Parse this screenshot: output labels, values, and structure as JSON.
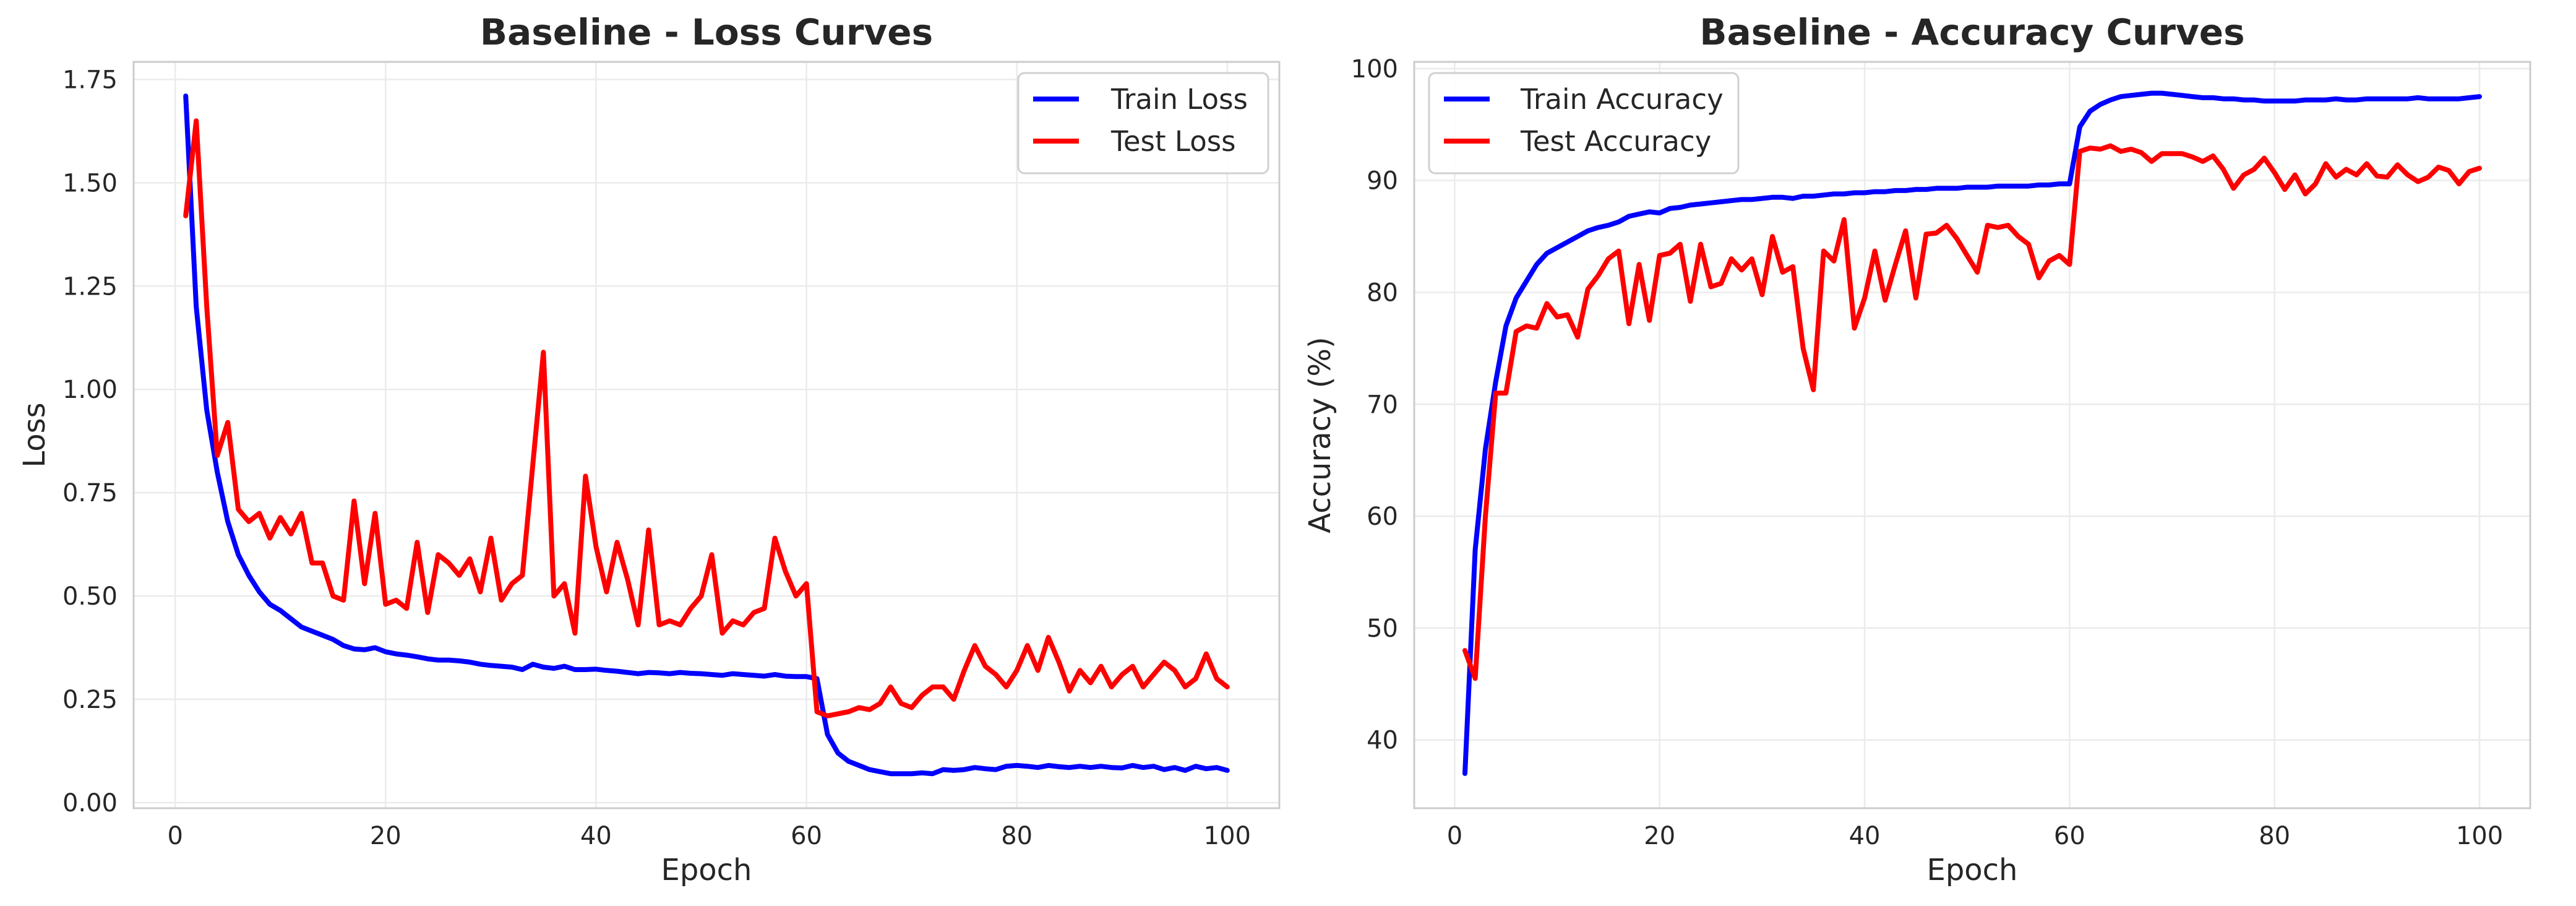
{
  "chart_data": [
    {
      "type": "line",
      "title": "Baseline - Loss Curves",
      "xlabel": "Epoch",
      "ylabel": "Loss",
      "xlim": [
        -3.95,
        104.95
      ],
      "ylim": [
        -0.0135,
        1.7925
      ],
      "xticks": [
        0,
        20,
        40,
        60,
        80,
        100
      ],
      "yticks": [
        0.0,
        0.25,
        0.5,
        0.75,
        1.0,
        1.25,
        1.5,
        1.75
      ],
      "ytick_labels": [
        "0.00",
        "0.25",
        "0.50",
        "0.75",
        "1.00",
        "1.25",
        "1.50",
        "1.75"
      ],
      "grid": true,
      "legend_position": "top-right",
      "x": [
        1,
        2,
        3,
        4,
        5,
        6,
        7,
        8,
        9,
        10,
        11,
        12,
        13,
        14,
        15,
        16,
        17,
        18,
        19,
        20,
        21,
        22,
        23,
        24,
        25,
        26,
        27,
        28,
        29,
        30,
        31,
        32,
        33,
        34,
        35,
        36,
        37,
        38,
        39,
        40,
        41,
        42,
        43,
        44,
        45,
        46,
        47,
        48,
        49,
        50,
        51,
        52,
        53,
        54,
        55,
        56,
        57,
        58,
        59,
        60,
        61,
        62,
        63,
        64,
        65,
        66,
        67,
        68,
        69,
        70,
        71,
        72,
        73,
        74,
        75,
        76,
        77,
        78,
        79,
        80,
        81,
        82,
        83,
        84,
        85,
        86,
        87,
        88,
        89,
        90,
        91,
        92,
        93,
        94,
        95,
        96,
        97,
        98,
        99,
        100
      ],
      "series": [
        {
          "name": "Train Loss",
          "color": "#0000ff",
          "values": [
            1.71,
            1.2,
            0.95,
            0.8,
            0.68,
            0.6,
            0.55,
            0.51,
            0.48,
            0.465,
            0.445,
            0.425,
            0.415,
            0.405,
            0.395,
            0.38,
            0.372,
            0.37,
            0.375,
            0.365,
            0.36,
            0.357,
            0.353,
            0.348,
            0.345,
            0.345,
            0.343,
            0.34,
            0.335,
            0.332,
            0.33,
            0.328,
            0.322,
            0.335,
            0.328,
            0.325,
            0.33,
            0.322,
            0.322,
            0.323,
            0.32,
            0.318,
            0.315,
            0.312,
            0.315,
            0.314,
            0.312,
            0.315,
            0.313,
            0.312,
            0.31,
            0.308,
            0.312,
            0.31,
            0.308,
            0.306,
            0.31,
            0.306,
            0.305,
            0.305,
            0.3,
            0.165,
            0.12,
            0.1,
            0.09,
            0.08,
            0.075,
            0.07,
            0.07,
            0.07,
            0.072,
            0.07,
            0.08,
            0.078,
            0.08,
            0.085,
            0.082,
            0.08,
            0.088,
            0.09,
            0.088,
            0.085,
            0.09,
            0.087,
            0.085,
            0.088,
            0.085,
            0.088,
            0.085,
            0.084,
            0.09,
            0.085,
            0.088,
            0.08,
            0.085,
            0.078,
            0.088,
            0.082,
            0.085,
            0.078
          ]
        },
        {
          "name": "Test Loss",
          "color": "#ff0000",
          "values": [
            1.42,
            1.65,
            1.2,
            0.84,
            0.92,
            0.71,
            0.68,
            0.7,
            0.64,
            0.69,
            0.65,
            0.7,
            0.58,
            0.58,
            0.5,
            0.49,
            0.73,
            0.53,
            0.7,
            0.48,
            0.49,
            0.47,
            0.63,
            0.46,
            0.6,
            0.58,
            0.55,
            0.59,
            0.51,
            0.64,
            0.49,
            0.53,
            0.55,
            0.82,
            1.09,
            0.5,
            0.53,
            0.41,
            0.79,
            0.62,
            0.51,
            0.63,
            0.54,
            0.43,
            0.66,
            0.43,
            0.44,
            0.43,
            0.47,
            0.5,
            0.6,
            0.41,
            0.44,
            0.43,
            0.46,
            0.47,
            0.64,
            0.56,
            0.5,
            0.53,
            0.22,
            0.21,
            0.215,
            0.22,
            0.23,
            0.225,
            0.24,
            0.28,
            0.24,
            0.23,
            0.26,
            0.28,
            0.28,
            0.25,
            0.32,
            0.38,
            0.33,
            0.31,
            0.28,
            0.32,
            0.38,
            0.32,
            0.4,
            0.34,
            0.27,
            0.32,
            0.29,
            0.33,
            0.28,
            0.31,
            0.33,
            0.28,
            0.31,
            0.34,
            0.32,
            0.28,
            0.3,
            0.36,
            0.3,
            0.28
          ]
        }
      ]
    },
    {
      "type": "line",
      "title": "Baseline - Accuracy Curves",
      "xlabel": "Epoch",
      "ylabel": "Accuracy (%)",
      "xlim": [
        -3.95,
        104.95
      ],
      "ylim": [
        33.9,
        100.6
      ],
      "xticks": [
        0,
        20,
        40,
        60,
        80,
        100
      ],
      "yticks": [
        40,
        50,
        60,
        70,
        80,
        90,
        100
      ],
      "ytick_labels": [
        "40",
        "50",
        "60",
        "70",
        "80",
        "90",
        "100"
      ],
      "grid": true,
      "legend_position": "top-left",
      "x": [
        1,
        2,
        3,
        4,
        5,
        6,
        7,
        8,
        9,
        10,
        11,
        12,
        13,
        14,
        15,
        16,
        17,
        18,
        19,
        20,
        21,
        22,
        23,
        24,
        25,
        26,
        27,
        28,
        29,
        30,
        31,
        32,
        33,
        34,
        35,
        36,
        37,
        38,
        39,
        40,
        41,
        42,
        43,
        44,
        45,
        46,
        47,
        48,
        49,
        50,
        51,
        52,
        53,
        54,
        55,
        56,
        57,
        58,
        59,
        60,
        61,
        62,
        63,
        64,
        65,
        66,
        67,
        68,
        69,
        70,
        71,
        72,
        73,
        74,
        75,
        76,
        77,
        78,
        79,
        80,
        81,
        82,
        83,
        84,
        85,
        86,
        87,
        88,
        89,
        90,
        91,
        92,
        93,
        94,
        95,
        96,
        97,
        98,
        99,
        100
      ],
      "series": [
        {
          "name": "Train Accuracy",
          "color": "#0000ff",
          "values": [
            37,
            57,
            66,
            72,
            77,
            79.5,
            81,
            82.5,
            83.5,
            84,
            84.5,
            85,
            85.5,
            85.8,
            86,
            86.3,
            86.8,
            87,
            87.2,
            87.1,
            87.5,
            87.6,
            87.8,
            87.9,
            88,
            88.1,
            88.2,
            88.3,
            88.3,
            88.4,
            88.5,
            88.5,
            88.4,
            88.6,
            88.6,
            88.7,
            88.8,
            88.8,
            88.9,
            88.9,
            89,
            89,
            89.1,
            89.1,
            89.2,
            89.2,
            89.3,
            89.3,
            89.3,
            89.4,
            89.4,
            89.4,
            89.5,
            89.5,
            89.5,
            89.5,
            89.6,
            89.6,
            89.7,
            89.7,
            94.8,
            96.2,
            96.8,
            97.2,
            97.5,
            97.6,
            97.7,
            97.8,
            97.8,
            97.7,
            97.6,
            97.5,
            97.4,
            97.4,
            97.3,
            97.3,
            97.2,
            97.2,
            97.1,
            97.1,
            97.1,
            97.1,
            97.2,
            97.2,
            97.2,
            97.3,
            97.2,
            97.2,
            97.3,
            97.3,
            97.3,
            97.3,
            97.3,
            97.4,
            97.3,
            97.3,
            97.3,
            97.3,
            97.4,
            97.5
          ]
        },
        {
          "name": "Test Accuracy",
          "color": "#ff0000",
          "values": [
            48,
            45.5,
            60,
            71,
            71,
            76.5,
            77,
            76.8,
            79,
            77.8,
            78,
            76,
            80.3,
            81.5,
            83,
            83.7,
            77.2,
            82.5,
            77.5,
            83.3,
            83.5,
            84.3,
            79.2,
            84.3,
            80.5,
            80.8,
            83,
            82,
            83,
            79.8,
            85,
            81.8,
            82.3,
            75,
            71.3,
            83.7,
            82.8,
            86.5,
            76.8,
            79.5,
            83.7,
            79.3,
            82.5,
            85.5,
            79.5,
            85.2,
            85.3,
            86,
            84.8,
            83.3,
            81.8,
            86,
            85.8,
            86,
            85,
            84.3,
            81.3,
            82.8,
            83.3,
            82.5,
            92.6,
            92.9,
            92.8,
            93.1,
            92.6,
            92.8,
            92.5,
            91.7,
            92.4,
            92.4,
            92.4,
            92.1,
            91.7,
            92.2,
            91,
            89.3,
            90.5,
            91,
            92,
            90.7,
            89.2,
            90.5,
            88.8,
            89.7,
            91.5,
            90.3,
            91,
            90.5,
            91.5,
            90.4,
            90.3,
            91.4,
            90.5,
            89.9,
            90.3,
            91.2,
            90.9,
            89.7,
            90.8,
            91.1
          ]
        }
      ]
    }
  ]
}
